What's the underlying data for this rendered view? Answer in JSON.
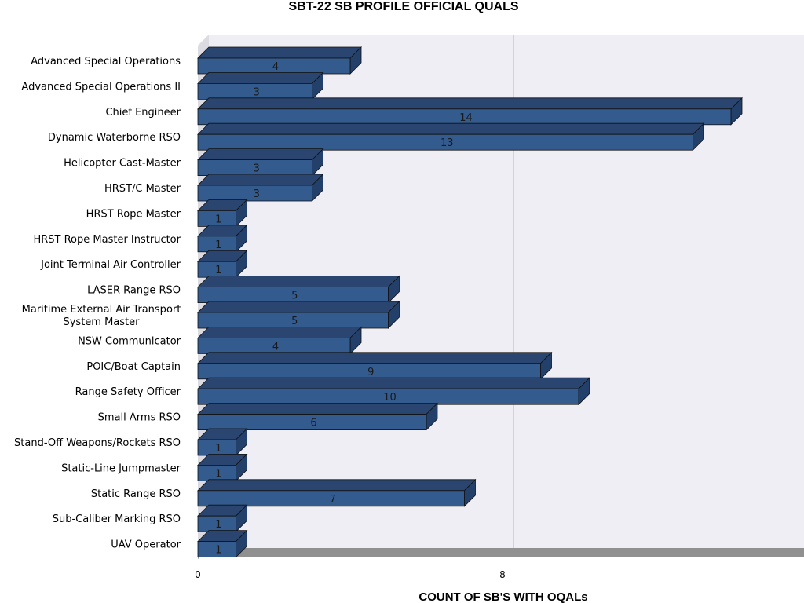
{
  "chart_data": {
    "type": "bar",
    "orientation": "horizontal",
    "style": "3d",
    "title": "SBT-22 SB PROFILE OFFICIAL QUALS",
    "xlabel": "COUNT OF SB'S WITH OQALs",
    "ylabel": "",
    "xlim": [
      0,
      16
    ],
    "xticks": [
      "0",
      "8"
    ],
    "grid": "vertical at 8",
    "bar_color": "#335b8e",
    "categories": [
      [
        "Advanced Special Operations"
      ],
      [
        "Advanced Special Operations II"
      ],
      [
        "Chief Engineer"
      ],
      [
        "Dynamic Waterborne RSO"
      ],
      [
        "Helicopter Cast-Master"
      ],
      [
        "HRST/C Master"
      ],
      [
        "HRST Rope Master"
      ],
      [
        "HRST Rope Master Instructor"
      ],
      [
        "Joint Terminal Air Controller"
      ],
      [
        "LASER Range RSO"
      ],
      [
        "Maritime External Air Transport",
        "System Master"
      ],
      [
        "NSW Communicator"
      ],
      [
        "POIC/Boat Captain"
      ],
      [
        "Range Safety Officer"
      ],
      [
        "Small Arms RSO"
      ],
      [
        "Stand-Off Weapons/Rockets RSO"
      ],
      [
        "Static-Line Jumpmaster"
      ],
      [
        "Static Range RSO"
      ],
      [
        "Sub-Caliber Marking RSO"
      ],
      [
        "UAV Operator"
      ]
    ],
    "values": [
      4,
      3,
      14,
      13,
      3,
      3,
      1,
      1,
      1,
      5,
      5,
      4,
      9,
      10,
      6,
      1,
      1,
      7,
      1,
      1
    ]
  }
}
